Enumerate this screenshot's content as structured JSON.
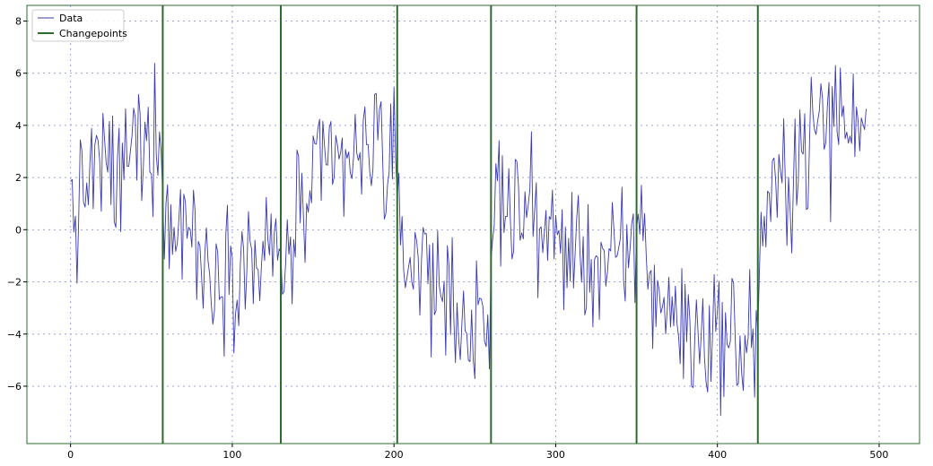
{
  "chart_data": {
    "type": "line",
    "title": "",
    "xlabel": "",
    "ylabel": "",
    "xlim": [
      -27,
      525
    ],
    "ylim": [
      -8.2,
      8.6
    ],
    "xticks": [
      0,
      100,
      200,
      300,
      400,
      500
    ],
    "yticks": [
      -6,
      -4,
      -2,
      0,
      2,
      4,
      6,
      8
    ],
    "grid": true,
    "legend_position": "top-left",
    "legend": [
      "Data",
      "Changepoints"
    ],
    "colors": {
      "data": "#3a3ab0",
      "changepoints": "#2e6b2e",
      "grid": "#9fa6d8",
      "axes": "#2e6b2e"
    },
    "changepoints": [
      57,
      130,
      202,
      260,
      350,
      425
    ],
    "series": [
      {
        "name": "Data",
        "anchors": [
          [
            0,
            1.0
          ],
          [
            5,
            0.5
          ],
          [
            10,
            1.8
          ],
          [
            15,
            2.6
          ],
          [
            20,
            2.2
          ],
          [
            25,
            2.4
          ],
          [
            30,
            1.5
          ],
          [
            35,
            2.8
          ],
          [
            40,
            3.3
          ],
          [
            45,
            3.1
          ],
          [
            50,
            3.6
          ],
          [
            55,
            4.1
          ],
          [
            57,
            3.0
          ],
          [
            58,
            0.8
          ],
          [
            65,
            -0.6
          ],
          [
            70,
            0.9
          ],
          [
            75,
            0.2
          ],
          [
            80,
            -1.3
          ],
          [
            85,
            -1.7
          ],
          [
            90,
            -1.2
          ],
          [
            95,
            -1.5
          ],
          [
            100,
            -1.0
          ],
          [
            105,
            -1.4
          ],
          [
            110,
            -1.2
          ],
          [
            115,
            -1.1
          ],
          [
            120,
            -1.3
          ],
          [
            125,
            -0.8
          ],
          [
            129,
            -1.0
          ],
          [
            131,
            -1.5
          ],
          [
            135,
            -0.9
          ],
          [
            140,
            0.3
          ],
          [
            145,
            0.8
          ],
          [
            150,
            1.4
          ],
          [
            155,
            1.9
          ],
          [
            160,
            2.4
          ],
          [
            165,
            2.6
          ],
          [
            170,
            2.3
          ],
          [
            175,
            2.9
          ],
          [
            180,
            2.2
          ],
          [
            185,
            3.2
          ],
          [
            190,
            4.2
          ],
          [
            195,
            2.6
          ],
          [
            200,
            2.2
          ],
          [
            203,
            -0.2
          ],
          [
            210,
            -1.2
          ],
          [
            215,
            -0.9
          ],
          [
            220,
            -1.4
          ],
          [
            225,
            -1.8
          ],
          [
            230,
            -2.4
          ],
          [
            235,
            -2.6
          ],
          [
            240,
            -3.0
          ],
          [
            245,
            -3.6
          ],
          [
            250,
            -4.0
          ],
          [
            255,
            -4.5
          ],
          [
            259,
            -4.2
          ],
          [
            261,
            0.8
          ],
          [
            265,
            1.2
          ],
          [
            270,
            1.5
          ],
          [
            275,
            1.1
          ],
          [
            280,
            0.7
          ],
          [
            285,
            0.4
          ],
          [
            290,
            0.5
          ],
          [
            295,
            -0.2
          ],
          [
            300,
            -0.4
          ],
          [
            305,
            -0.8
          ],
          [
            310,
            -0.5
          ],
          [
            315,
            -1.1
          ],
          [
            320,
            -1.3
          ],
          [
            325,
            -1.0
          ],
          [
            330,
            -1.4
          ],
          [
            335,
            -1.2
          ],
          [
            340,
            -1.5
          ],
          [
            345,
            -1.3
          ],
          [
            349,
            -1.0
          ],
          [
            351,
            1.8
          ],
          [
            355,
            -0.8
          ],
          [
            360,
            -2.2
          ],
          [
            365,
            -2.6
          ],
          [
            370,
            -3.1
          ],
          [
            375,
            -3.4
          ],
          [
            380,
            -3.6
          ],
          [
            385,
            -4.4
          ],
          [
            390,
            -3.9
          ],
          [
            395,
            -4.2
          ],
          [
            400,
            -3.6
          ],
          [
            405,
            -4.1
          ],
          [
            410,
            -4.3
          ],
          [
            415,
            -4.6
          ],
          [
            420,
            -4.0
          ],
          [
            424,
            -4.8
          ],
          [
            426,
            -0.6
          ],
          [
            430,
            0.5
          ],
          [
            435,
            1.0
          ],
          [
            440,
            1.6
          ],
          [
            445,
            2.2
          ],
          [
            450,
            2.9
          ],
          [
            455,
            3.3
          ],
          [
            460,
            3.8
          ],
          [
            465,
            4.2
          ],
          [
            470,
            3.6
          ],
          [
            475,
            5.2
          ],
          [
            480,
            3.5
          ],
          [
            485,
            3.9
          ],
          [
            490,
            4.6
          ],
          [
            492,
            5.8
          ]
        ],
        "noise_amplitude": 1.3
      }
    ]
  }
}
